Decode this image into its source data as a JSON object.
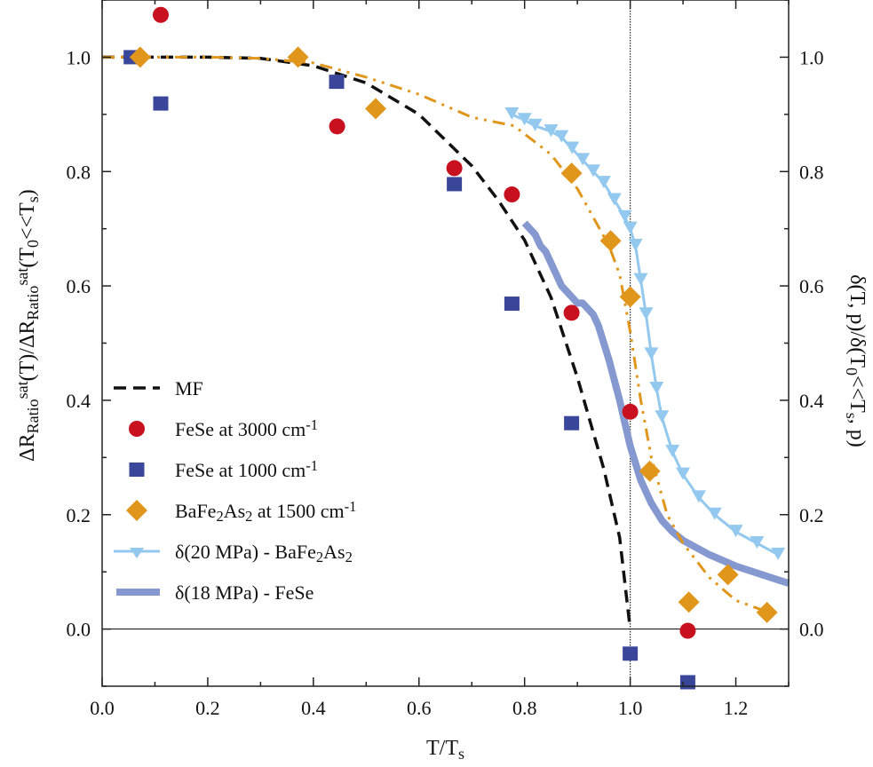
{
  "chart_data": {
    "type": "scatter",
    "title": "",
    "xlabel": [
      {
        "t": "T/T"
      },
      {
        "t": "s",
        "s": "sub"
      }
    ],
    "ylabel_left": [
      {
        "t": "ΔR"
      },
      {
        "t": "Ratio",
        "s": "sub"
      },
      {
        "t": "sat",
        "s": "sup"
      },
      {
        "t": "(T)/ΔR"
      },
      {
        "t": "Ratio",
        "s": "sub"
      },
      {
        "t": "sat",
        "s": "sup"
      },
      {
        "t": "(T"
      },
      {
        "t": "0",
        "s": "sub"
      },
      {
        "t": "<<T"
      },
      {
        "t": "s",
        "s": "sub"
      },
      {
        "t": ")"
      }
    ],
    "ylabel_right": [
      {
        "t": "δ(T, p)/δ(T"
      },
      {
        "t": "0",
        "s": "sub"
      },
      {
        "t": "<<T"
      },
      {
        "t": "s",
        "s": "sub"
      },
      {
        "t": ", p)"
      }
    ],
    "xlim": [
      0,
      1.3
    ],
    "ylim": [
      -0.1,
      1.1
    ],
    "xticks": [
      0.0,
      0.2,
      0.4,
      0.6,
      0.8,
      1.0,
      1.2
    ],
    "xtick_labels": [
      "0.0",
      "0.2",
      "0.4",
      "0.6",
      "0.8",
      "1.0",
      "1.2"
    ],
    "yticks": [
      0.0,
      0.2,
      0.4,
      0.6,
      0.8,
      1.0
    ],
    "ytick_labels": [
      "0.0",
      "0.2",
      "0.4",
      "0.6",
      "0.8",
      "1.0"
    ],
    "reference_lines": {
      "vertical_x": 1.0,
      "horizontal_y": 0.0
    },
    "grid": false,
    "legend_position": "bottom-left",
    "colors": {
      "mf": "#111111",
      "red": "#c8101e",
      "blue": "#3a469a",
      "orange": "#e0961a",
      "lightblue": "#93c8ef",
      "band": "#8598cf"
    },
    "series": [
      {
        "name": "MF",
        "label": [
          {
            "t": "MF"
          }
        ],
        "kind": "dashed-line",
        "color": "#111111",
        "x": [
          0,
          0.2,
          0.3,
          0.4,
          0.5,
          0.6,
          0.7,
          0.75,
          0.8,
          0.85,
          0.9,
          0.95,
          0.98,
          1.0
        ],
        "y": [
          1.0,
          1.0,
          0.998,
          0.985,
          0.955,
          0.9,
          0.81,
          0.75,
          0.68,
          0.58,
          0.44,
          0.28,
          0.16,
          0.0
        ]
      },
      {
        "name": "FeSe at 3000 cm-1",
        "label": [
          {
            "t": "FeSe at 3000 cm"
          },
          {
            "t": "-1",
            "s": "sup"
          }
        ],
        "kind": "circle",
        "color": "#c8101e",
        "x": [
          0.111,
          0.445,
          0.667,
          0.776,
          0.889,
          1.0,
          1.109
        ],
        "y": [
          1.074,
          0.879,
          0.806,
          0.76,
          0.553,
          0.38,
          -0.003
        ]
      },
      {
        "name": "FeSe at 1000 cm-1",
        "label": [
          {
            "t": "FeSe at 1000 cm"
          },
          {
            "t": "-1",
            "s": "sup"
          }
        ],
        "kind": "square",
        "color": "#3a469a",
        "x": [
          0.055,
          0.111,
          0.444,
          0.667,
          0.776,
          0.889,
          1.0,
          1.109
        ],
        "y": [
          1.0,
          0.919,
          0.957,
          0.778,
          0.569,
          0.36,
          -0.043,
          -0.093
        ]
      },
      {
        "name": "BaFe2As2 at 1500 cm-1",
        "label": [
          {
            "t": "BaFe"
          },
          {
            "t": "2",
            "s": "sub"
          },
          {
            "t": "As"
          },
          {
            "t": "2",
            "s": "sub"
          },
          {
            "t": " at 1500 cm"
          },
          {
            "t": "-1",
            "s": "sup"
          }
        ],
        "kind": "diamond",
        "color": "#e0961a",
        "x": [
          0.072,
          0.371,
          0.518,
          0.889,
          0.963,
          1.0,
          1.037,
          1.111,
          1.185,
          1.259
        ],
        "y": [
          1.0,
          1.0,
          0.91,
          0.797,
          0.679,
          0.581,
          0.276,
          0.047,
          0.095,
          0.029
        ]
      },
      {
        "name": "BaFe2As2 fit",
        "kind": "dashdot-line",
        "color": "#e0961a",
        "x": [
          0,
          0.2,
          0.3,
          0.4,
          0.5,
          0.6,
          0.7,
          0.78,
          0.85,
          0.9,
          0.93,
          0.96,
          0.98,
          1.0,
          1.02,
          1.04,
          1.07,
          1.1,
          1.15,
          1.2,
          1.26
        ],
        "y": [
          1.0,
          1.0,
          0.998,
          0.99,
          0.965,
          0.935,
          0.895,
          0.88,
          0.83,
          0.77,
          0.72,
          0.67,
          0.62,
          0.52,
          0.4,
          0.3,
          0.2,
          0.15,
          0.09,
          0.05,
          0.03
        ]
      },
      {
        "name": "δ(20 MPa) - BaFe2As2",
        "label": [
          {
            "t": "δ(20 MPa) - BaFe"
          },
          {
            "t": "2",
            "s": "sub"
          },
          {
            "t": "As"
          },
          {
            "t": "2",
            "s": "sub"
          }
        ],
        "kind": "triangle-line",
        "color": "#93c8ef",
        "x": [
          0.776,
          0.8,
          0.82,
          0.85,
          0.87,
          0.89,
          0.91,
          0.93,
          0.95,
          0.97,
          0.99,
          1.0,
          1.01,
          1.02,
          1.03,
          1.04,
          1.05,
          1.06,
          1.08,
          1.1,
          1.13,
          1.16,
          1.2,
          1.24,
          1.28
        ],
        "y": [
          0.9,
          0.89,
          0.88,
          0.87,
          0.86,
          0.84,
          0.82,
          0.8,
          0.78,
          0.75,
          0.72,
          0.7,
          0.67,
          0.61,
          0.55,
          0.48,
          0.42,
          0.37,
          0.31,
          0.27,
          0.23,
          0.2,
          0.17,
          0.15,
          0.13
        ]
      },
      {
        "name": "δ(18 MPa) - FeSe",
        "label": [
          {
            "t": "δ(18 MPa) - FeSe"
          }
        ],
        "kind": "thick-line",
        "color": "#8598cf",
        "x": [
          0.8,
          0.81,
          0.82,
          0.83,
          0.84,
          0.85,
          0.86,
          0.87,
          0.88,
          0.89,
          0.9,
          0.91,
          0.92,
          0.93,
          0.94,
          0.96,
          0.98,
          1.0,
          1.02,
          1.04,
          1.06,
          1.08,
          1.1,
          1.15,
          1.2,
          1.25,
          1.3
        ],
        "y": [
          0.71,
          0.7,
          0.69,
          0.67,
          0.66,
          0.64,
          0.62,
          0.6,
          0.59,
          0.58,
          0.57,
          0.57,
          0.56,
          0.55,
          0.53,
          0.47,
          0.4,
          0.32,
          0.26,
          0.22,
          0.19,
          0.17,
          0.155,
          0.13,
          0.11,
          0.095,
          0.08
        ]
      }
    ]
  }
}
